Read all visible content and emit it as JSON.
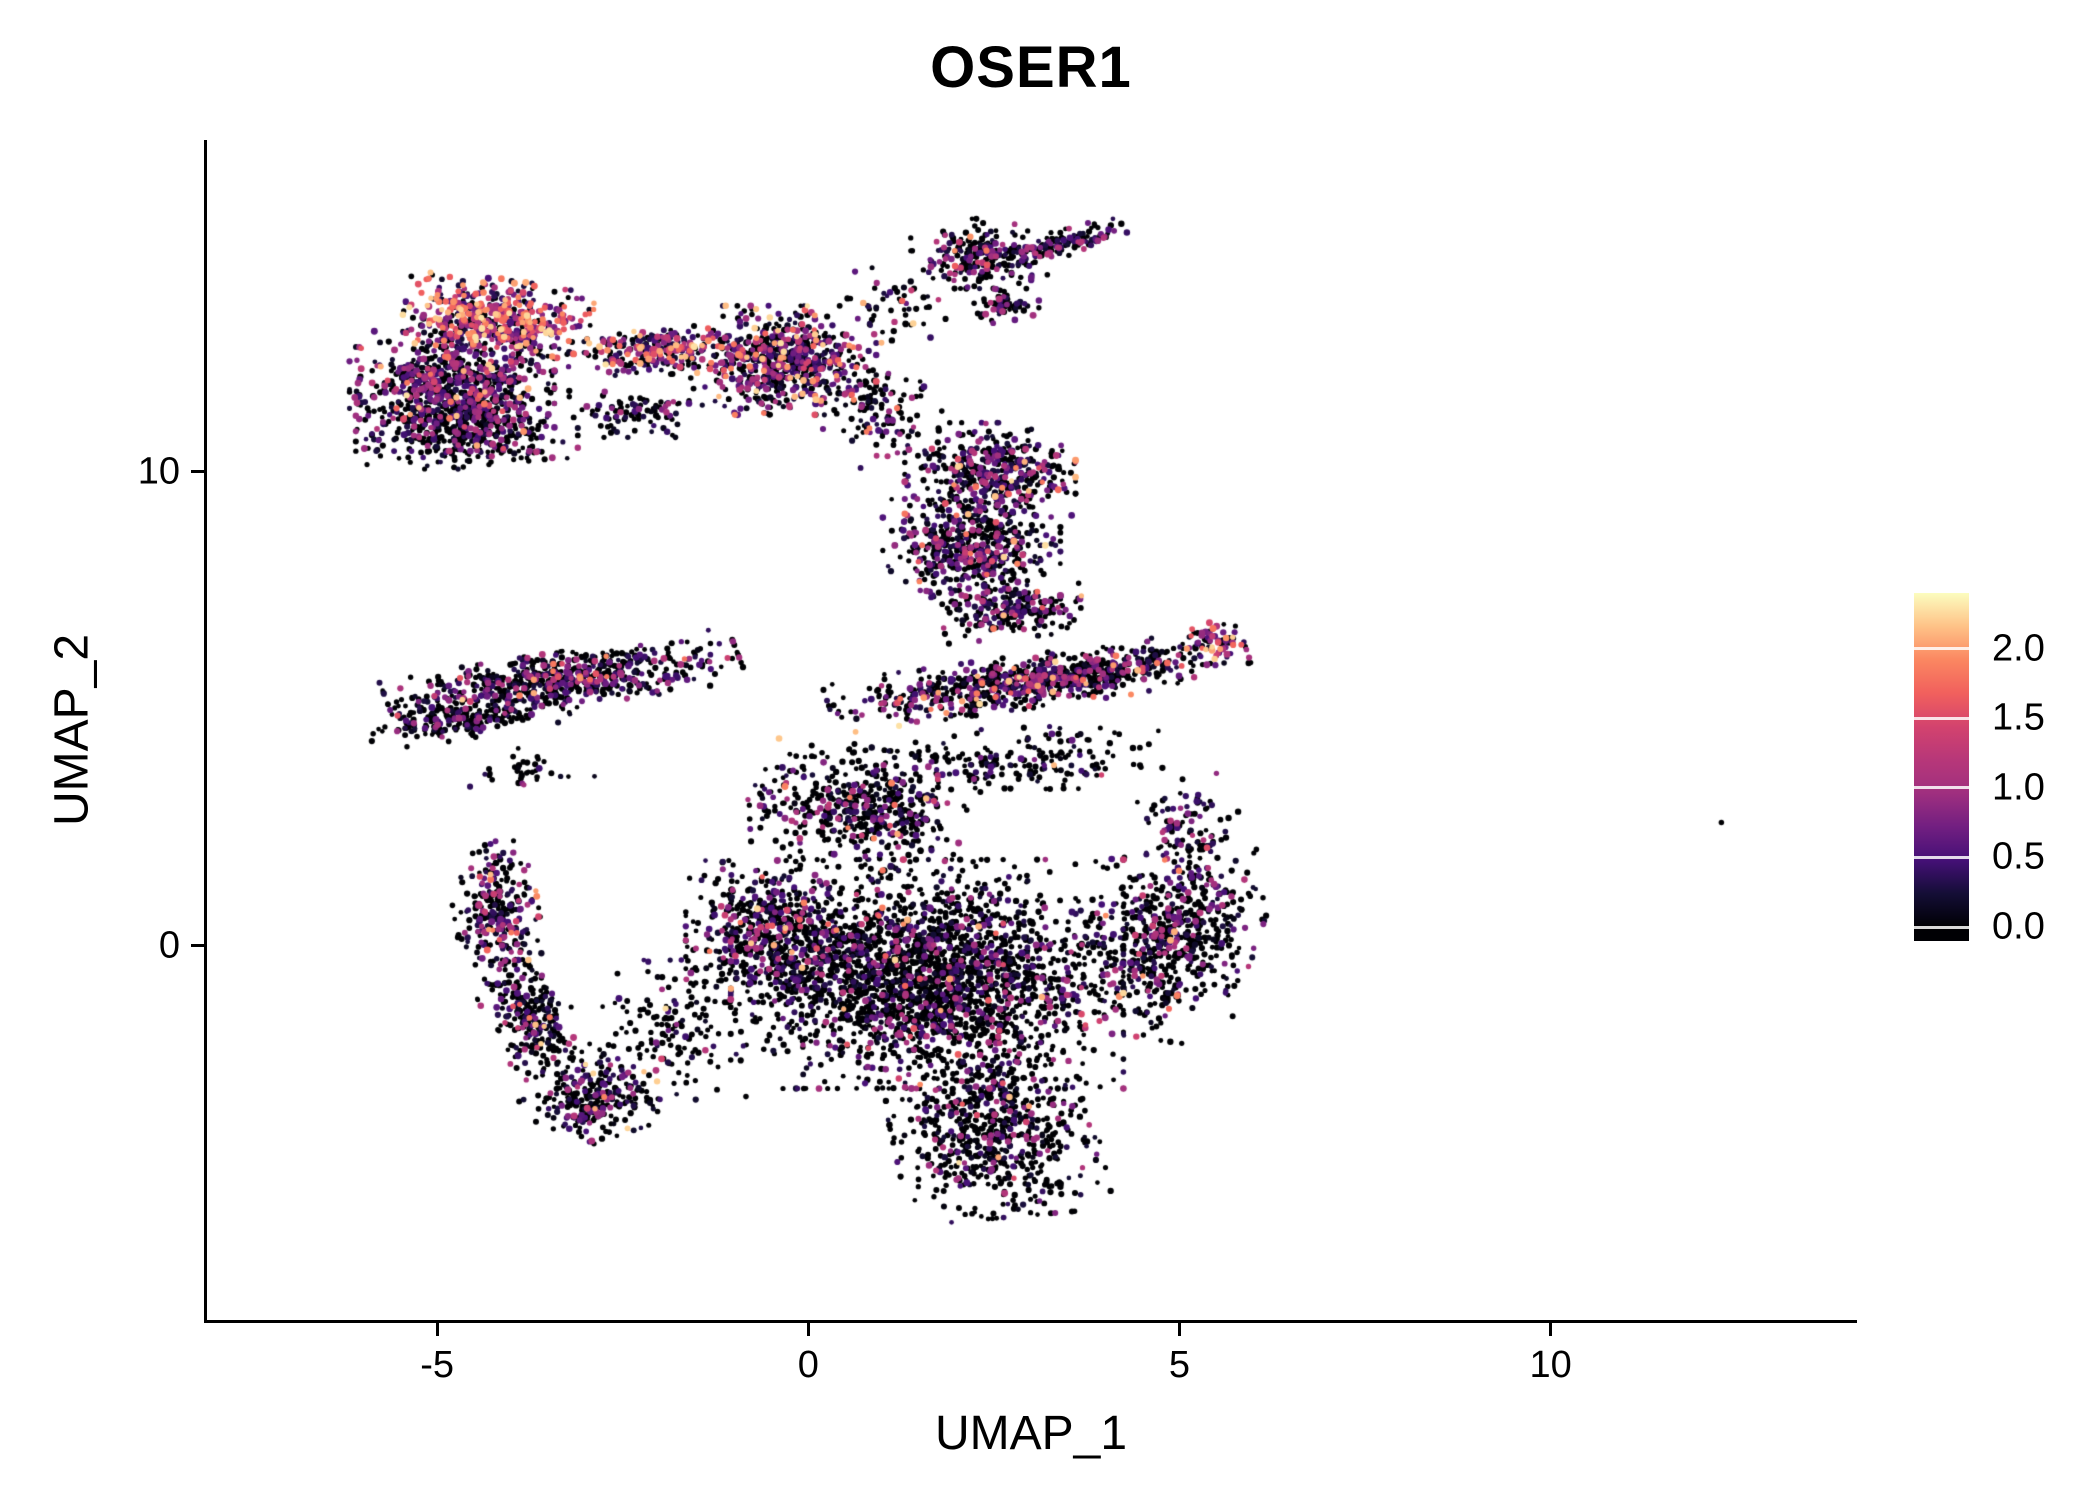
{
  "chart_data": {
    "type": "scatter",
    "title": "OSER1",
    "xlabel": "UMAP_1",
    "ylabel": "UMAP_2",
    "xlim": [
      -8.1,
      14.1
    ],
    "ylim": [
      -7.9,
      17.0
    ],
    "grid": false,
    "legend_position": "right",
    "x_ticks": [
      {
        "v": -5,
        "label": "-5"
      },
      {
        "v": 0,
        "label": "0"
      },
      {
        "v": 5,
        "label": "5"
      },
      {
        "v": 10,
        "label": "10"
      }
    ],
    "y_ticks": [
      {
        "v": 10,
        "label": "10"
      },
      {
        "v": 0,
        "label": "0"
      }
    ],
    "colorbar": {
      "bar_min": -0.1,
      "bar_max": 2.4,
      "color_domain": [
        0,
        2.4
      ],
      "ticks": [
        {
          "v": 2.0,
          "label": "2.0"
        },
        {
          "v": 1.5,
          "label": "1.5"
        },
        {
          "v": 1.0,
          "label": "1.0"
        },
        {
          "v": 0.5,
          "label": "0.5"
        },
        {
          "v": 0.0,
          "label": "0.0"
        }
      ],
      "stops": [
        [
          0.0,
          "#000004"
        ],
        [
          0.1,
          "#140e36"
        ],
        [
          0.2,
          "#451077"
        ],
        [
          0.3,
          "#721f81"
        ],
        [
          0.4,
          "#9f2f7f"
        ],
        [
          0.5,
          "#b73779"
        ],
        [
          0.6,
          "#d3436e"
        ],
        [
          0.7,
          "#f1605d"
        ],
        [
          0.8,
          "#fb8761"
        ],
        [
          0.9,
          "#fec287"
        ],
        [
          1.0,
          "#fcfdbf"
        ]
      ]
    },
    "point": {
      "radius_min": 2.3,
      "radius_max": 3.2
    },
    "seed": 42,
    "expr_levels": {
      "zero": [
        0,
        0
      ],
      "low": [
        0.05,
        0.5
      ],
      "mid": [
        0.5,
        1.2
      ],
      "high": [
        1.2,
        2.3
      ]
    },
    "clusters": [
      {
        "name": "topleft-hot",
        "cx": -4.2,
        "cy": 13.2,
        "sx": 0.55,
        "sy": 0.38,
        "rot": -8,
        "n": 550,
        "w": [
          0.15,
          0.2,
          0.3,
          0.35
        ]
      },
      {
        "name": "topleft-main",
        "cx": -4.8,
        "cy": 11.7,
        "sx": 0.6,
        "sy": 0.55,
        "rot": 0,
        "n": 900,
        "w": [
          0.45,
          0.25,
          0.25,
          0.05
        ]
      },
      {
        "name": "topleft-fringe",
        "cx": -4.6,
        "cy": 10.7,
        "sx": 0.65,
        "sy": 0.28,
        "rot": 0,
        "n": 250,
        "w": [
          0.7,
          0.2,
          0.1,
          0.0
        ]
      },
      {
        "name": "bridge",
        "cx": -2.1,
        "cy": 12.55,
        "sx": 0.5,
        "sy": 0.22,
        "rot": 4,
        "n": 260,
        "w": [
          0.3,
          0.2,
          0.3,
          0.2
        ]
      },
      {
        "name": "topmid-blob",
        "cx": -0.35,
        "cy": 12.35,
        "sx": 0.55,
        "sy": 0.5,
        "rot": 0,
        "n": 700,
        "w": [
          0.4,
          0.22,
          0.25,
          0.13
        ]
      },
      {
        "name": "topmid-trail",
        "cx": 0.9,
        "cy": 11.3,
        "sx": 0.35,
        "sy": 0.45,
        "rot": 25,
        "n": 120,
        "w": [
          0.6,
          0.2,
          0.15,
          0.05
        ]
      },
      {
        "name": "topright-cluster",
        "cx": 2.3,
        "cy": 14.6,
        "sx": 0.4,
        "sy": 0.32,
        "rot": 0,
        "n": 260,
        "w": [
          0.55,
          0.25,
          0.17,
          0.03
        ]
      },
      {
        "name": "topright-streak",
        "cx": 3.4,
        "cy": 14.8,
        "sx": 0.4,
        "sy": 0.12,
        "rot": 22,
        "n": 130,
        "w": [
          0.6,
          0.2,
          0.2,
          0.0
        ]
      },
      {
        "name": "topright-small",
        "cx": 2.6,
        "cy": 13.5,
        "sx": 0.22,
        "sy": 0.16,
        "rot": 0,
        "n": 60,
        "w": [
          0.6,
          0.2,
          0.2,
          0.0
        ]
      },
      {
        "name": "upper-blob-top",
        "cx": 2.45,
        "cy": 10.0,
        "sx": 0.5,
        "sy": 0.45,
        "rot": 0,
        "n": 450,
        "w": [
          0.5,
          0.25,
          0.2,
          0.05
        ]
      },
      {
        "name": "upper-blob-low",
        "cx": 2.2,
        "cy": 8.4,
        "sx": 0.52,
        "sy": 0.52,
        "rot": 0,
        "n": 550,
        "w": [
          0.55,
          0.25,
          0.17,
          0.03
        ]
      },
      {
        "name": "upper-blob-knot",
        "cx": 2.75,
        "cy": 7.05,
        "sx": 0.42,
        "sy": 0.24,
        "rot": 8,
        "n": 220,
        "w": [
          0.6,
          0.22,
          0.15,
          0.03
        ]
      },
      {
        "name": "left-band",
        "cx": -3.3,
        "cy": 5.6,
        "sx": 1.05,
        "sy": 0.26,
        "rot": 14,
        "n": 700,
        "w": [
          0.55,
          0.25,
          0.17,
          0.03
        ]
      },
      {
        "name": "left-band-2",
        "cx": -4.6,
        "cy": 4.75,
        "sx": 0.6,
        "sy": 0.16,
        "rot": 14,
        "n": 180,
        "w": [
          0.6,
          0.25,
          0.15,
          0.0
        ]
      },
      {
        "name": "right-band",
        "cx": 3.1,
        "cy": 5.6,
        "sx": 1.25,
        "sy": 0.24,
        "rot": 12,
        "n": 850,
        "w": [
          0.55,
          0.22,
          0.18,
          0.05
        ]
      },
      {
        "name": "right-band-hot",
        "cx": 5.5,
        "cy": 6.4,
        "sx": 0.18,
        "sy": 0.18,
        "rot": 0,
        "n": 60,
        "w": [
          0.2,
          0.2,
          0.3,
          0.3
        ]
      },
      {
        "name": "central-wedge",
        "cx": 0.7,
        "cy": 2.9,
        "sx": 0.65,
        "sy": 0.55,
        "rot": -18,
        "n": 500,
        "w": [
          0.7,
          0.18,
          0.1,
          0.02
        ]
      },
      {
        "name": "central-core",
        "cx": 1.6,
        "cy": -0.6,
        "sx": 1.15,
        "sy": 1.05,
        "rot": 0,
        "n": 2400,
        "w": [
          0.72,
          0.16,
          0.1,
          0.02
        ]
      },
      {
        "name": "bottom-tail",
        "cx": 2.5,
        "cy": -3.9,
        "sx": 0.6,
        "sy": 0.8,
        "rot": 8,
        "n": 700,
        "w": [
          0.7,
          0.18,
          0.1,
          0.02
        ]
      },
      {
        "name": "right-lobe",
        "cx": 4.9,
        "cy": 0.2,
        "sx": 0.5,
        "sy": 0.95,
        "rot": -12,
        "n": 650,
        "w": [
          0.65,
          0.2,
          0.12,
          0.03
        ]
      },
      {
        "name": "left-sub",
        "cx": -0.5,
        "cy": 0.3,
        "sx": 0.5,
        "sy": 0.65,
        "rot": 0,
        "n": 550,
        "w": [
          0.6,
          0.22,
          0.14,
          0.04
        ]
      },
      {
        "name": "left-arc-1",
        "cx": -4.2,
        "cy": 0.7,
        "sx": 0.25,
        "sy": 0.65,
        "rot": 6,
        "n": 280,
        "w": [
          0.55,
          0.25,
          0.15,
          0.05
        ]
      },
      {
        "name": "left-arc-2",
        "cx": -3.7,
        "cy": -1.6,
        "sx": 0.25,
        "sy": 0.6,
        "rot": 18,
        "n": 260,
        "w": [
          0.55,
          0.25,
          0.15,
          0.05
        ]
      },
      {
        "name": "left-arc-3",
        "cx": -2.9,
        "cy": -3.2,
        "sx": 0.4,
        "sy": 0.38,
        "rot": 28,
        "n": 260,
        "w": [
          0.6,
          0.22,
          0.15,
          0.03
        ]
      },
      {
        "name": "gap-sparse",
        "cx": -1.8,
        "cy": -1.8,
        "sx": 0.5,
        "sy": 0.65,
        "rot": 0,
        "n": 150,
        "w": [
          0.75,
          0.15,
          0.08,
          0.02
        ]
      },
      {
        "name": "core-top-sparse",
        "cx": 2.8,
        "cy": 3.9,
        "sx": 0.85,
        "sy": 0.3,
        "rot": 4,
        "n": 200,
        "w": [
          0.7,
          0.18,
          0.1,
          0.02
        ]
      },
      {
        "name": "bridge-below",
        "cx": -2.3,
        "cy": 11.3,
        "sx": 0.4,
        "sy": 0.25,
        "rot": 0,
        "n": 90,
        "w": [
          0.6,
          0.25,
          0.15,
          0.0
        ]
      },
      {
        "name": "top-sparse",
        "cx": 1.2,
        "cy": 13.5,
        "sx": 0.35,
        "sy": 0.35,
        "rot": 0,
        "n": 50,
        "w": [
          0.6,
          0.2,
          0.15,
          0.05
        ]
      },
      {
        "name": "band-below",
        "cx": -3.8,
        "cy": 3.7,
        "sx": 0.4,
        "sy": 0.2,
        "rot": 0,
        "n": 35,
        "w": [
          0.7,
          0.2,
          0.1,
          0.0
        ]
      },
      {
        "name": "right-sparse",
        "cx": 5.1,
        "cy": 2.6,
        "sx": 0.3,
        "sy": 0.45,
        "rot": 0,
        "n": 80,
        "w": [
          0.6,
          0.25,
          0.12,
          0.03
        ]
      }
    ],
    "singletons": [
      {
        "x": 12.3,
        "y": 2.6,
        "v": 0
      }
    ]
  }
}
